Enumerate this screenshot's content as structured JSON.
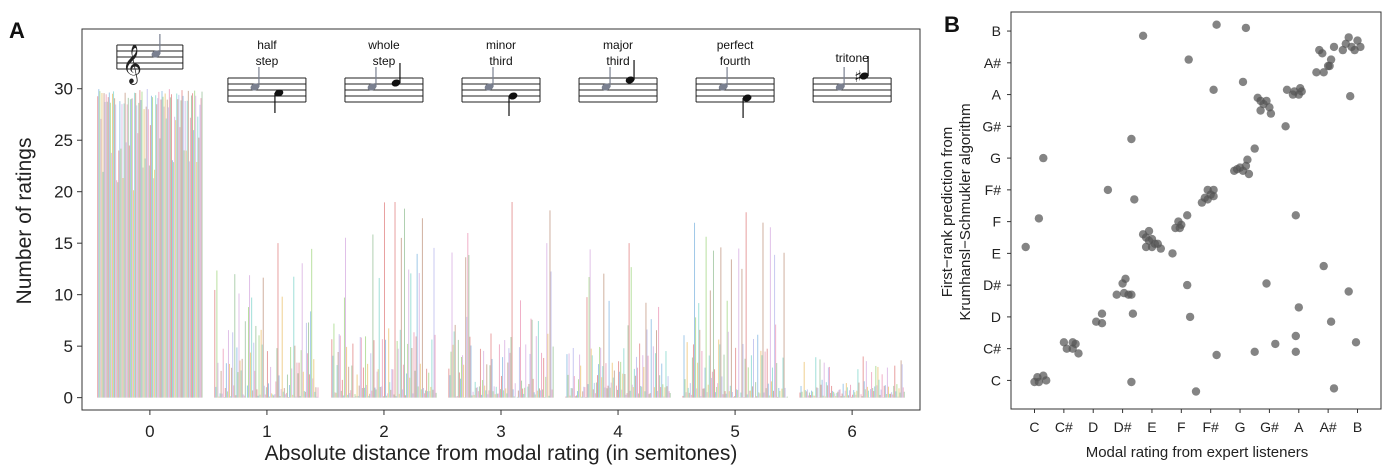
{
  "panel_a_letter": "A",
  "panel_b_letter": "B",
  "chart_data": [
    {
      "type": "bar",
      "panel": "A",
      "xlabel": "Absolute distance from modal rating (in semitones)",
      "ylabel": "Number of ratings",
      "x_ticks": [
        "0",
        "1",
        "2",
        "3",
        "4",
        "5",
        "6"
      ],
      "y_ticks": [
        0,
        5,
        10,
        15,
        20,
        25,
        30
      ],
      "ylim": [
        -1.2,
        35.8
      ],
      "xlim": [
        -0.58,
        6.58
      ],
      "grid": false,
      "interval_labels": [
        {
          "x": 1,
          "lines": [
            "half",
            "step"
          ]
        },
        {
          "x": 2,
          "lines": [
            "whole",
            "step"
          ]
        },
        {
          "x": 3,
          "lines": [
            "minor",
            "third"
          ]
        },
        {
          "x": 4,
          "lines": [
            "major",
            "third"
          ]
        },
        {
          "x": 5,
          "lines": [
            "perfect",
            "fourth"
          ]
        },
        {
          "x": 6,
          "lines": [
            "tritone"
          ]
        }
      ],
      "groups": [
        {
          "x": 0,
          "count": 100,
          "base": 27,
          "spread": 3,
          "description_range": [
            20,
            30
          ]
        },
        {
          "x": 1,
          "count": 100,
          "max": 15,
          "range": [
            0,
            15
          ]
        },
        {
          "x": 2,
          "count": 100,
          "max": 19,
          "range": [
            0,
            19
          ]
        },
        {
          "x": 3,
          "count": 100,
          "max": 19,
          "range": [
            0,
            19
          ]
        },
        {
          "x": 4,
          "count": 100,
          "max": 15,
          "range": [
            0,
            15
          ]
        },
        {
          "x": 5,
          "count": 100,
          "max": 18,
          "range": [
            0,
            18
          ]
        },
        {
          "x": 6,
          "count": 100,
          "max": 4,
          "range": [
            0,
            4
          ]
        }
      ],
      "bar_colors": [
        "#e8a0a0",
        "#a0c8e8",
        "#b8e0a0",
        "#e0c0e8",
        "#f0d090",
        "#a0e0d8",
        "#d0b0a0",
        "#c8c8f0",
        "#f0b0c8",
        "#b0d0b0"
      ]
    },
    {
      "type": "scatter",
      "panel": "B",
      "xlabel": "Modal rating from expert listeners",
      "ylabel": [
        "First−rank prediction from",
        "Krumhansl−Schmukler algorithm"
      ],
      "x_categories": [
        "C",
        "C#",
        "D",
        "D#",
        "E",
        "F",
        "F#",
        "G",
        "G#",
        "A",
        "A#",
        "B"
      ],
      "y_categories": [
        "C",
        "C#",
        "D",
        "D#",
        "E",
        "F",
        "F#",
        "G",
        "G#",
        "A",
        "A#",
        "B"
      ],
      "xlim": [
        -0.8,
        11.8
      ],
      "ylim": [
        -0.9,
        11.6
      ],
      "grid": false,
      "point_color": "#555555",
      "points": [
        [
          0.0,
          -0.05
        ],
        [
          0.1,
          0.1
        ],
        [
          0.15,
          -0.05
        ],
        [
          0.3,
          0.15
        ],
        [
          0.4,
          0.0
        ],
        [
          -0.3,
          4.2
        ],
        [
          0.3,
          7.0
        ],
        [
          0.15,
          5.1
        ],
        [
          1.0,
          1.2
        ],
        [
          1.1,
          1.0
        ],
        [
          1.3,
          1.0
        ],
        [
          1.4,
          1.15
        ],
        [
          1.5,
          0.85
        ],
        [
          1.3,
          1.2
        ],
        [
          2.1,
          1.85
        ],
        [
          2.3,
          1.8
        ],
        [
          2.3,
          2.1
        ],
        [
          2.5,
          6.0
        ],
        [
          2.8,
          2.7
        ],
        [
          3.0,
          3.05
        ],
        [
          3.05,
          2.75
        ],
        [
          3.2,
          2.7
        ],
        [
          3.3,
          2.7
        ],
        [
          3.35,
          2.1
        ],
        [
          3.1,
          3.2
        ],
        [
          3.3,
          7.6
        ],
        [
          3.4,
          5.7
        ],
        [
          3.3,
          -0.05
        ],
        [
          3.7,
          4.6
        ],
        [
          3.8,
          4.5
        ],
        [
          3.9,
          4.4
        ],
        [
          4.0,
          4.45
        ],
        [
          4.1,
          4.3
        ],
        [
          4.2,
          4.3
        ],
        [
          4.3,
          4.15
        ],
        [
          4.0,
          4.2
        ],
        [
          3.8,
          4.2
        ],
        [
          3.9,
          4.7
        ],
        [
          3.7,
          10.85
        ],
        [
          4.7,
          4.0
        ],
        [
          4.8,
          4.8
        ],
        [
          4.9,
          5.0
        ],
        [
          4.95,
          4.8
        ],
        [
          5.0,
          4.9
        ],
        [
          5.2,
          5.2
        ],
        [
          5.2,
          3.0
        ],
        [
          5.3,
          2.0
        ],
        [
          5.25,
          10.1
        ],
        [
          5.5,
          -0.35
        ],
        [
          5.7,
          5.6
        ],
        [
          5.8,
          5.75
        ],
        [
          5.9,
          5.7
        ],
        [
          6.0,
          5.85
        ],
        [
          6.1,
          5.8
        ],
        [
          6.1,
          6.0
        ],
        [
          5.9,
          6.0
        ],
        [
          6.1,
          9.15
        ],
        [
          6.2,
          11.2
        ],
        [
          6.2,
          0.8
        ],
        [
          6.8,
          6.6
        ],
        [
          6.9,
          6.65
        ],
        [
          7.0,
          6.7
        ],
        [
          7.1,
          6.6
        ],
        [
          7.2,
          6.75
        ],
        [
          7.25,
          6.95
        ],
        [
          7.3,
          6.5
        ],
        [
          7.5,
          7.3
        ],
        [
          7.1,
          9.4
        ],
        [
          7.2,
          11.1
        ],
        [
          7.6,
          8.9
        ],
        [
          7.7,
          8.8
        ],
        [
          7.8,
          8.7
        ],
        [
          7.9,
          8.8
        ],
        [
          8.0,
          8.6
        ],
        [
          8.05,
          8.4
        ],
        [
          7.7,
          8.5
        ],
        [
          7.9,
          3.05
        ],
        [
          8.2,
          1.15
        ],
        [
          7.5,
          0.9
        ],
        [
          8.6,
          9.15
        ],
        [
          8.8,
          9.0
        ],
        [
          8.85,
          9.1
        ],
        [
          9.0,
          9.0
        ],
        [
          9.05,
          9.2
        ],
        [
          9.1,
          9.1
        ],
        [
          8.55,
          8.0
        ],
        [
          8.9,
          5.2
        ],
        [
          9.0,
          2.3
        ],
        [
          8.9,
          1.4
        ],
        [
          8.9,
          0.9
        ],
        [
          9.6,
          9.7
        ],
        [
          9.7,
          10.4
        ],
        [
          9.8,
          10.3
        ],
        [
          9.85,
          9.7
        ],
        [
          10.0,
          9.9
        ],
        [
          10.1,
          10.1
        ],
        [
          10.2,
          10.5
        ],
        [
          10.05,
          9.9
        ],
        [
          9.85,
          3.6
        ],
        [
          10.1,
          1.85
        ],
        [
          10.2,
          -0.25
        ],
        [
          10.5,
          10.4
        ],
        [
          10.6,
          10.6
        ],
        [
          10.7,
          10.8
        ],
        [
          10.8,
          10.5
        ],
        [
          10.9,
          10.4
        ],
        [
          11.0,
          10.7
        ],
        [
          11.1,
          10.5
        ],
        [
          10.75,
          8.95
        ],
        [
          10.7,
          2.8
        ],
        [
          10.95,
          1.2
        ]
      ]
    }
  ]
}
